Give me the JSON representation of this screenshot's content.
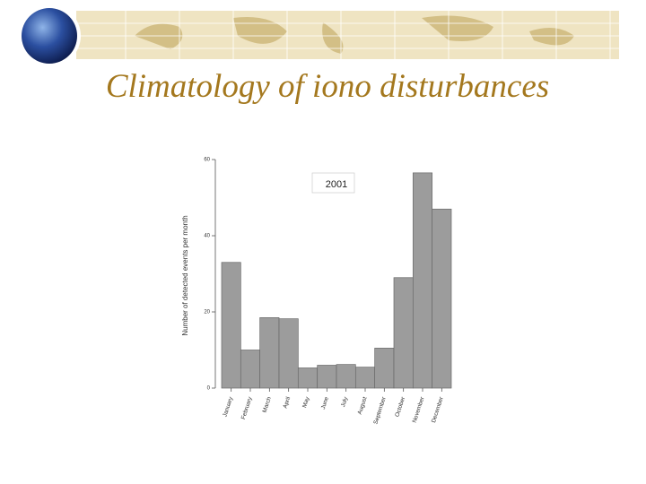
{
  "title": "Climatology of iono disturbances",
  "chart_data": {
    "type": "bar",
    "y_label": "Number of detected events per month",
    "categories": [
      "January",
      "February",
      "March",
      "April",
      "May",
      "June",
      "July",
      "August",
      "September",
      "October",
      "November",
      "December"
    ],
    "series": [
      {
        "name": "2001",
        "color": "#9c9c9c",
        "values": [
          33,
          10,
          18.5,
          18.2,
          5.3,
          6,
          6.2,
          5.5,
          10.5,
          29,
          56.5,
          47
        ]
      }
    ],
    "ylim": [
      0,
      60
    ],
    "yticks": [
      0,
      20,
      40,
      60
    ]
  }
}
